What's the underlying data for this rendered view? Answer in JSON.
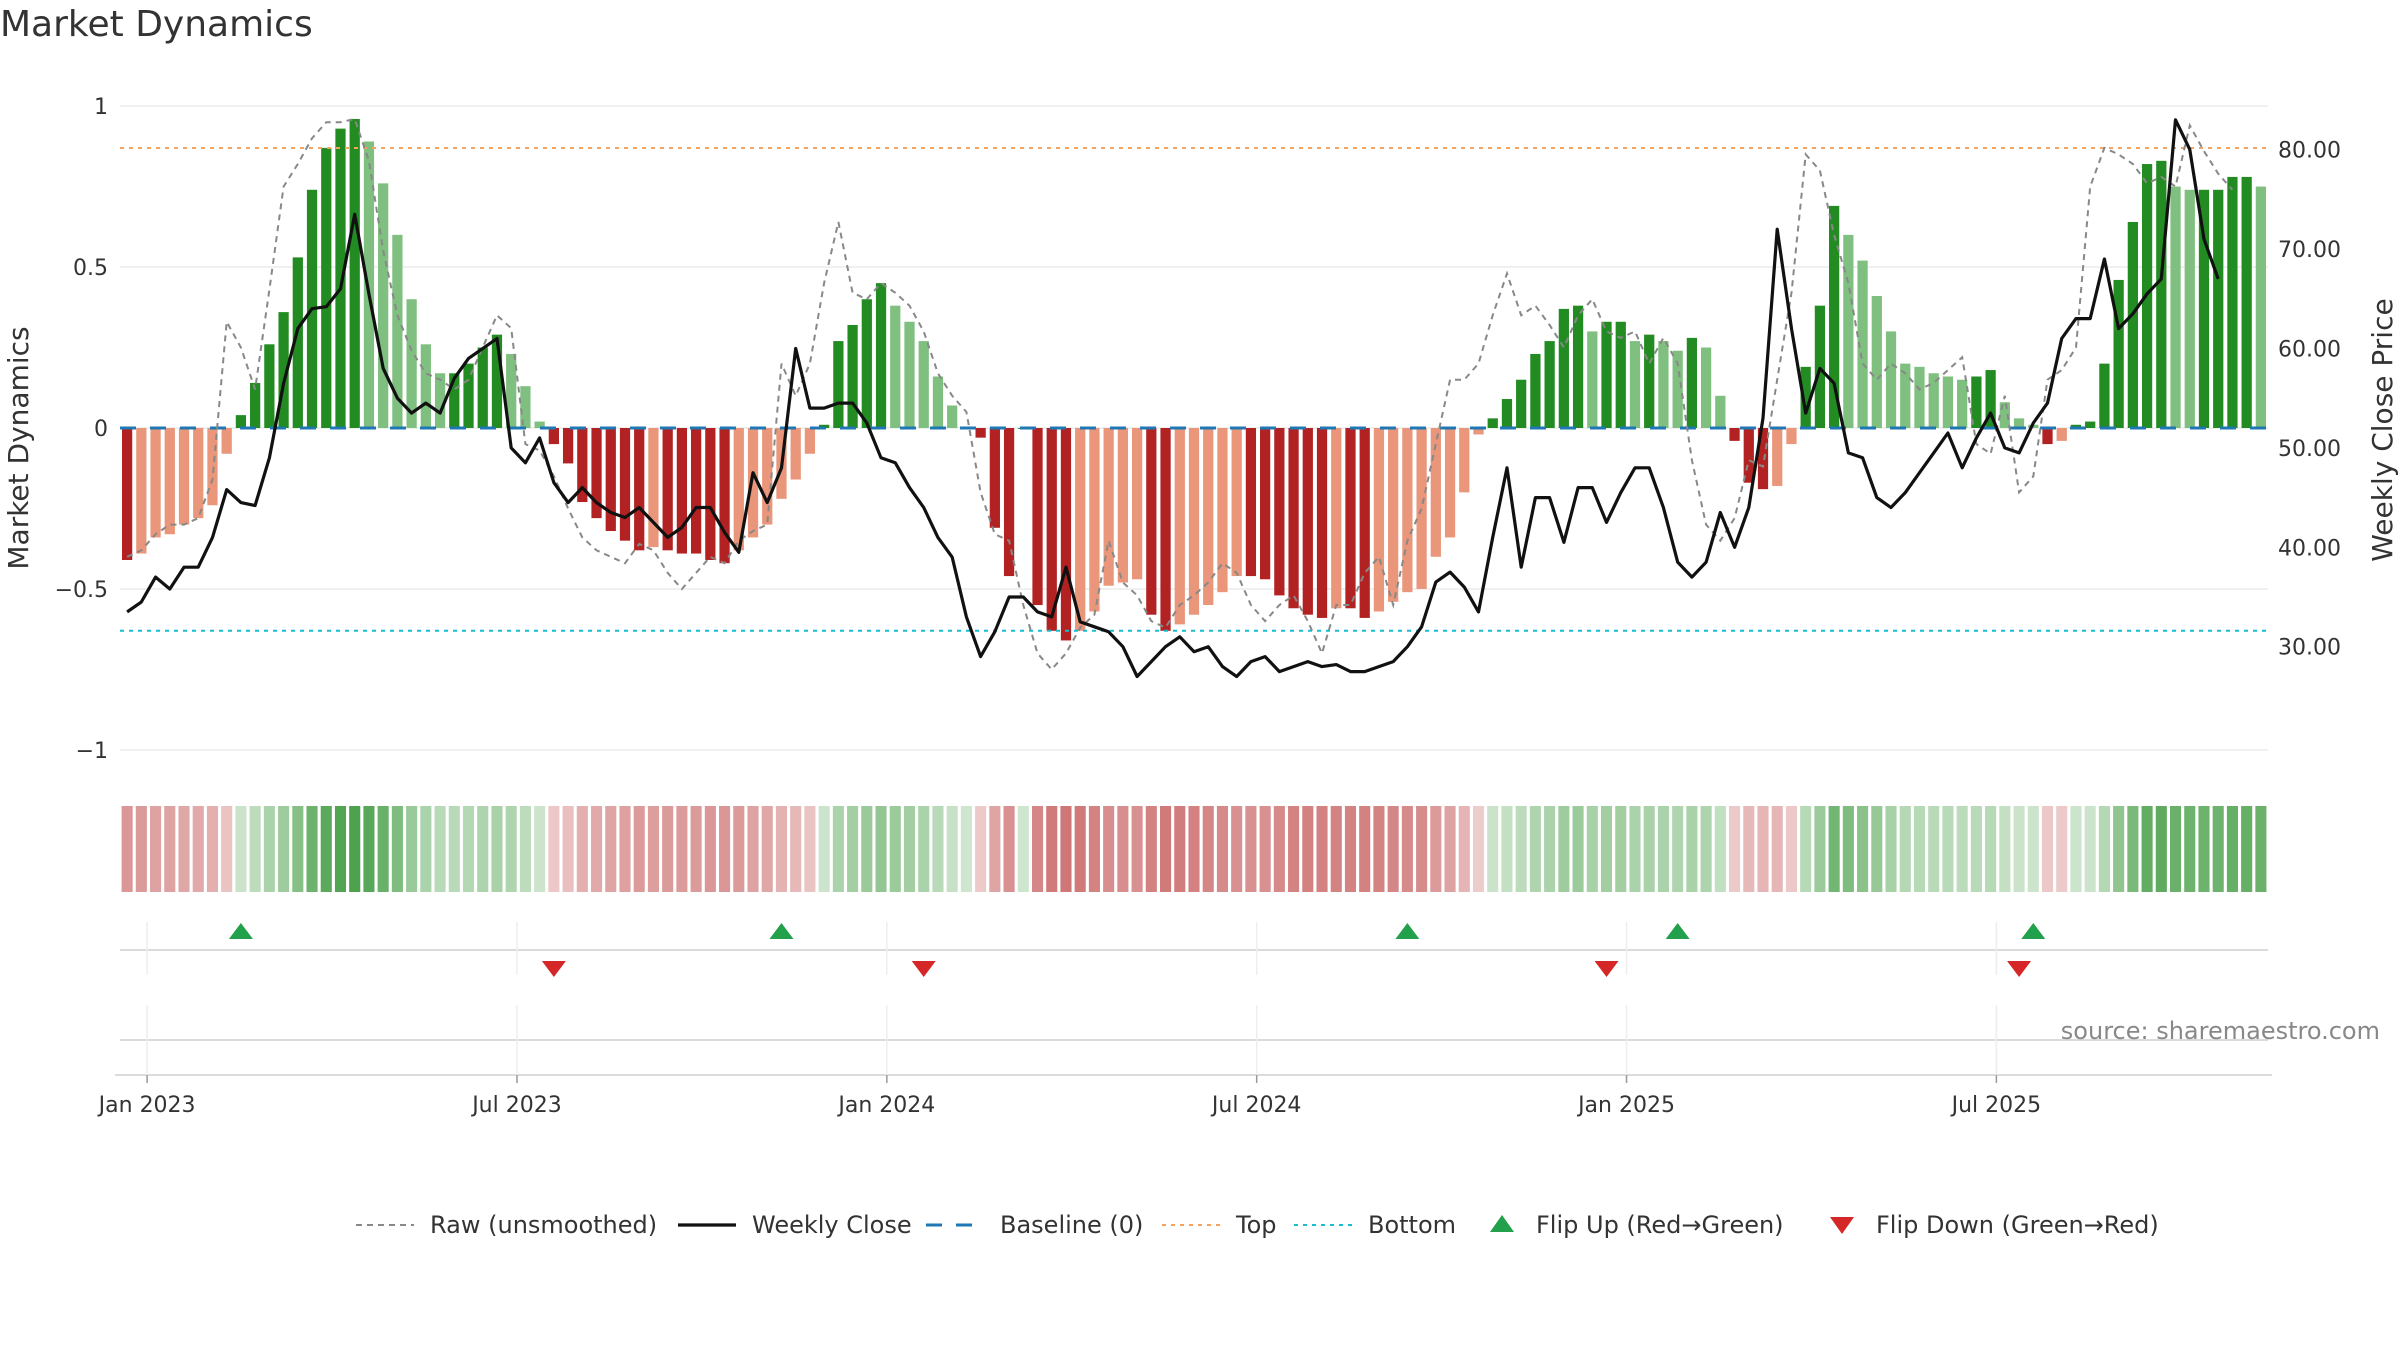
{
  "title": "Market Dynamics",
  "source": "source: sharemaestro.com",
  "chart_data": {
    "type": "bar",
    "start_date": "2023-01-02",
    "period": "weekly",
    "y_left": {
      "label": "Market Dynamics",
      "ylim": [
        -1.05,
        1.05
      ],
      "ticks": [
        1,
        0.5,
        0,
        -0.5,
        -1
      ],
      "tick_labels": [
        "1",
        "0.5",
        "0",
        "−0.5",
        "−1"
      ]
    },
    "y_right": {
      "label": "Weekly Close Price",
      "ylim": [
        18,
        86
      ],
      "ticks": [
        80,
        70,
        60,
        50,
        40,
        30
      ],
      "tick_labels": [
        "80.00",
        "70.00",
        "60.00",
        "50.00",
        "40.00",
        "30.00"
      ]
    },
    "x_ticks": [
      "Jan 2023",
      "Jul 2023",
      "Jan 2024",
      "Jul 2024",
      "Jan 2025",
      "Jul 2025"
    ],
    "x_tick_weeks": [
      0,
      26,
      52,
      78,
      104,
      130
    ],
    "lines": {
      "top": 0.87,
      "bottom": -0.63,
      "baseline": 0
    },
    "colors": {
      "strong_pos": "#228B22",
      "weak_pos": "#7FBF7F",
      "strong_neg": "#B22222",
      "weak_neg": "#E9967A",
      "raw": "#888888",
      "close": "#111111",
      "baseline": "#1F77B4",
      "top": "#F4A460",
      "bottom": "#17BECF",
      "flip_up": "#22A04B",
      "flip_down": "#D62728"
    },
    "smoothed": [
      -0.41,
      -0.39,
      -0.34,
      -0.33,
      -0.3,
      -0.28,
      -0.24,
      -0.08,
      0.04,
      0.14,
      0.26,
      0.36,
      0.53,
      0.74,
      0.87,
      0.93,
      0.96,
      0.89,
      0.76,
      0.6,
      0.4,
      0.26,
      0.17,
      0.17,
      0.2,
      0.25,
      0.29,
      0.23,
      0.13,
      0.02,
      -0.05,
      -0.11,
      -0.23,
      -0.28,
      -0.32,
      -0.35,
      -0.38,
      -0.37,
      -0.38,
      -0.39,
      -0.39,
      -0.41,
      -0.42,
      -0.38,
      -0.34,
      -0.3,
      -0.22,
      -0.16,
      -0.08,
      0.01,
      0.27,
      0.32,
      0.4,
      0.45,
      0.38,
      0.33,
      0.27,
      0.16,
      0.07,
      0.0,
      -0.03,
      -0.31,
      -0.46,
      0.0,
      -0.55,
      -0.63,
      -0.66,
      -0.63,
      -0.57,
      -0.49,
      -0.48,
      -0.47,
      -0.58,
      -0.63,
      -0.61,
      -0.58,
      -0.55,
      -0.51,
      -0.46,
      -0.46,
      -0.47,
      -0.52,
      -0.56,
      -0.58,
      -0.59,
      -0.56,
      -0.56,
      -0.59,
      -0.57,
      -0.54,
      -0.51,
      -0.5,
      -0.4,
      -0.34,
      -0.2,
      -0.02,
      0.03,
      0.09,
      0.15,
      0.23,
      0.27,
      0.37,
      0.38,
      0.3,
      0.33,
      0.33,
      0.27,
      0.29,
      0.27,
      0.24,
      0.28,
      0.25,
      0.1,
      -0.04,
      -0.17,
      -0.19,
      -0.18,
      -0.05,
      0.19,
      0.38,
      0.69,
      0.6,
      0.52,
      0.41,
      0.3,
      0.2,
      0.19,
      0.17,
      0.16,
      0.15,
      0.16,
      0.18,
      0.08,
      0.03,
      0.01,
      -0.05,
      -0.04,
      0.01,
      0.02,
      0.2,
      0.46,
      0.64,
      0.82,
      0.83,
      0.75,
      0.74,
      0.74,
      0.74,
      0.78,
      0.78,
      0.75
    ],
    "raw": [
      -0.4,
      -0.38,
      -0.33,
      -0.3,
      -0.3,
      -0.28,
      -0.16,
      0.33,
      0.25,
      0.12,
      0.43,
      0.75,
      0.82,
      0.9,
      0.95,
      0.95,
      0.96,
      0.83,
      0.55,
      0.35,
      0.24,
      0.17,
      0.15,
      0.12,
      0.15,
      0.25,
      0.35,
      0.31,
      -0.05,
      -0.07,
      -0.15,
      -0.25,
      -0.34,
      -0.38,
      -0.4,
      -0.42,
      -0.36,
      -0.38,
      -0.45,
      -0.5,
      -0.45,
      -0.4,
      -0.42,
      -0.35,
      -0.32,
      -0.3,
      0.2,
      0.1,
      0.2,
      0.45,
      0.64,
      0.42,
      0.4,
      0.45,
      0.42,
      0.38,
      0.3,
      0.17,
      0.1,
      0.05,
      -0.2,
      -0.33,
      -0.35,
      -0.55,
      -0.7,
      -0.75,
      -0.7,
      -0.62,
      -0.58,
      -0.35,
      -0.48,
      -0.52,
      -0.6,
      -0.62,
      -0.55,
      -0.52,
      -0.48,
      -0.42,
      -0.45,
      -0.55,
      -0.6,
      -0.55,
      -0.52,
      -0.6,
      -0.7,
      -0.55,
      -0.55,
      -0.45,
      -0.4,
      -0.55,
      -0.35,
      -0.25,
      -0.05,
      0.15,
      0.15,
      0.2,
      0.35,
      0.48,
      0.35,
      0.38,
      0.32,
      0.25,
      0.35,
      0.4,
      0.3,
      0.28,
      0.3,
      0.2,
      0.28,
      0.2,
      -0.1,
      -0.3,
      -0.35,
      -0.28,
      -0.1,
      -0.12,
      0.15,
      0.42,
      0.85,
      0.8,
      0.6,
      0.45,
      0.2,
      0.15,
      0.2,
      0.17,
      0.12,
      0.14,
      0.18,
      0.22,
      -0.05,
      -0.08,
      0.1,
      -0.2,
      -0.15,
      0.15,
      0.18,
      0.25,
      0.75,
      0.87,
      0.85,
      0.82,
      0.76,
      0.78,
      0.75,
      0.94,
      0.86,
      0.79,
      0.74
    ],
    "close": [
      33.5,
      34.5,
      37.0,
      35.8,
      38.0,
      38.0,
      41.0,
      45.8,
      44.5,
      44.2,
      49.0,
      56.5,
      62.0,
      64.0,
      64.2,
      66.0,
      73.5,
      65.5,
      58.0,
      55.0,
      53.5,
      54.5,
      53.5,
      57.0,
      59.0,
      60.0,
      61.0,
      50.0,
      48.5,
      51.0,
      46.5,
      44.5,
      46.0,
      44.5,
      43.5,
      43.0,
      44.0,
      42.5,
      41.0,
      42.0,
      44.0,
      44.0,
      41.5,
      39.5,
      47.5,
      44.5,
      48.0,
      60.0,
      54.0,
      54.0,
      54.5,
      54.5,
      52.5,
      49.0,
      48.5,
      46.0,
      44.0,
      41.0,
      39.0,
      33.0,
      29.0,
      31.5,
      35.0,
      35.0,
      33.5,
      33.0,
      38.0,
      32.5,
      32.0,
      31.5,
      30.0,
      27.0,
      28.5,
      30.0,
      31.0,
      29.5,
      30.0,
      28.0,
      27.0,
      28.5,
      29.0,
      27.5,
      28.0,
      28.5,
      28.0,
      28.2,
      27.5,
      27.5,
      28.0,
      28.5,
      30.0,
      32.0,
      36.5,
      37.5,
      36.0,
      33.5,
      41.0,
      48.0,
      38.0,
      45.0,
      45.0,
      40.5,
      46.0,
      46.0,
      42.5,
      45.5,
      48.0,
      48.0,
      44.0,
      38.5,
      37.0,
      38.5,
      43.5,
      40.0,
      44.0,
      53.0,
      72.0,
      62.0,
      53.5,
      58.0,
      56.5,
      49.5,
      49.0,
      45.0,
      44.0,
      45.5,
      47.5,
      49.5,
      51.5,
      48.0,
      51.0,
      53.5,
      50.0,
      49.5,
      52.5,
      54.5,
      61.0,
      63.0,
      63.0,
      69.0,
      62.0,
      63.5,
      65.5,
      67.0,
      83.0,
      80.0,
      71.0,
      67.0
    ],
    "flips": [
      {
        "week": 8,
        "dir": "up"
      },
      {
        "week": 30,
        "dir": "down"
      },
      {
        "week": 46,
        "dir": "up"
      },
      {
        "week": 56,
        "dir": "down"
      },
      {
        "week": 90,
        "dir": "up"
      },
      {
        "week": 104,
        "dir": "down"
      },
      {
        "week": 109,
        "dir": "up"
      },
      {
        "week": 133,
        "dir": "down"
      },
      {
        "week": 134,
        "dir": "up"
      }
    ],
    "legend": [
      {
        "name": "Raw (unsmoothed)",
        "kind": "dash-gray"
      },
      {
        "name": "Weekly Close",
        "kind": "solid-black"
      },
      {
        "name": "Baseline (0)",
        "kind": "dash-blue"
      },
      {
        "name": "Top",
        "kind": "dot-orange"
      },
      {
        "name": "Bottom",
        "kind": "dot-cyan"
      },
      {
        "name": "Flip Up (Red→Green)",
        "kind": "tri-up"
      },
      {
        "name": "Flip Down (Green→Red)",
        "kind": "tri-down"
      }
    ],
    "legend_position": "bottom-center"
  }
}
